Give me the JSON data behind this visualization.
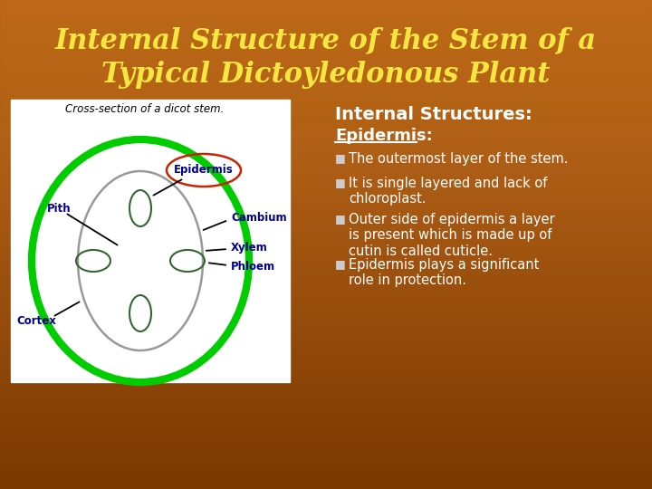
{
  "title_line1": "Internal Structure of the Stem of a",
  "title_line2": "Typical Dictoyledonous Plant",
  "title_color": "#F5E642",
  "title_fontsize": 22,
  "section_header": "Internal Structures:",
  "subsection": "Epidermis:",
  "bullets": [
    "The outermost layer of the stem.",
    "It is single layered and lack of\nchloroplast.",
    "Outer side of epidermis a layer\nis present which is made up of\ncutin is called cuticle.",
    "Epidermis plays a significant\nrole in protection."
  ],
  "diagram_title": "Cross-section of a dicot stem.",
  "label_color": "#00008B",
  "section_header_color": "#FFFFFF",
  "subsection_color": "#FFFFFF",
  "bullet_color": "#FFFFFF",
  "white_bg": "#FFFFFF",
  "green_ellipse_color": "#00CC00",
  "gray_ellipse_color": "#999999",
  "dark_green_small": "#336633",
  "red_circle_color": "#CC2200"
}
